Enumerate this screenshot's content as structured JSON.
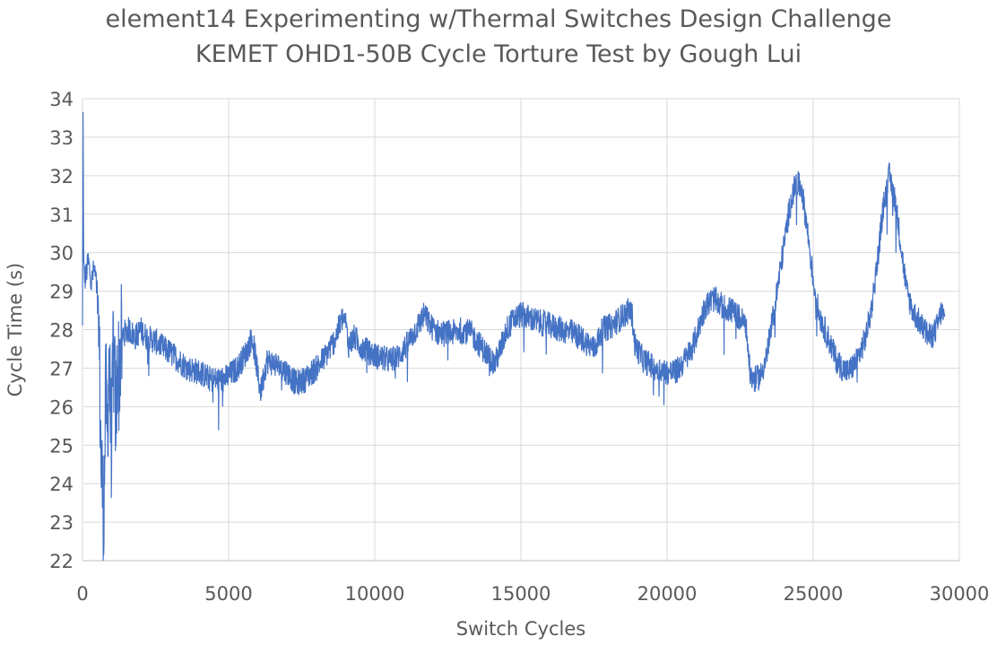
{
  "chart_data": {
    "type": "line",
    "title": [
      "element14 Experimenting w/Thermal Switches Design Challenge",
      "KEMET OHD1-50B Cycle Torture Test by Gough Lui"
    ],
    "xlabel": "Switch Cycles",
    "ylabel": "Cycle Time (s)",
    "xlim": [
      0,
      30000
    ],
    "ylim": [
      22,
      34
    ],
    "xticks": [
      "0",
      "5000",
      "10000",
      "15000",
      "20000",
      "25000",
      "30000"
    ],
    "yticks": [
      "22",
      "23",
      "24",
      "25",
      "26",
      "27",
      "28",
      "29",
      "30",
      "31",
      "32",
      "33",
      "34"
    ],
    "grid": true,
    "legend": "none",
    "series_color": "#4472C4",
    "series": [
      {
        "points": [
          [
            0,
            28.0
          ],
          [
            20,
            34.0
          ],
          [
            40,
            29.6
          ],
          [
            100,
            29.3
          ],
          [
            200,
            29.8
          ],
          [
            300,
            29.2
          ],
          [
            400,
            29.6
          ],
          [
            500,
            29.0
          ],
          [
            560,
            28.4
          ],
          [
            600,
            26.2
          ],
          [
            640,
            24.5
          ],
          [
            680,
            24.0
          ],
          [
            720,
            23.0
          ],
          [
            760,
            24.6
          ],
          [
            800,
            26.4
          ],
          [
            850,
            25.2
          ],
          [
            900,
            27.2
          ],
          [
            950,
            26.0
          ],
          [
            1000,
            24.8
          ],
          [
            1050,
            27.6
          ],
          [
            1100,
            26.5
          ],
          [
            1150,
            25.6
          ],
          [
            1200,
            27.2
          ],
          [
            1250,
            26.8
          ],
          [
            1300,
            27.5
          ],
          [
            1400,
            27.9
          ],
          [
            1600,
            28.0
          ],
          [
            1800,
            27.8
          ],
          [
            2000,
            28.0
          ],
          [
            2200,
            27.8
          ],
          [
            2500,
            27.7
          ],
          [
            2800,
            27.5
          ],
          [
            3000,
            27.4
          ],
          [
            3300,
            27.2
          ],
          [
            3600,
            27.0
          ],
          [
            4000,
            26.9
          ],
          [
            4400,
            26.7
          ],
          [
            4800,
            26.7
          ],
          [
            5000,
            26.8
          ],
          [
            5300,
            27.0
          ],
          [
            5600,
            27.4
          ],
          [
            5800,
            27.8
          ],
          [
            5900,
            27.4
          ],
          [
            6000,
            26.8
          ],
          [
            6100,
            26.4
          ],
          [
            6300,
            27.2
          ],
          [
            6600,
            27.1
          ],
          [
            7000,
            26.9
          ],
          [
            7300,
            26.6
          ],
          [
            7600,
            26.7
          ],
          [
            8000,
            27.0
          ],
          [
            8300,
            27.3
          ],
          [
            8600,
            27.7
          ],
          [
            8900,
            28.3
          ],
          [
            9000,
            28.2
          ],
          [
            9100,
            27.6
          ],
          [
            9300,
            27.8
          ],
          [
            9500,
            27.6
          ],
          [
            9800,
            27.4
          ],
          [
            10100,
            27.3
          ],
          [
            10500,
            27.2
          ],
          [
            10800,
            27.3
          ],
          [
            11100,
            27.6
          ],
          [
            11400,
            28.0
          ],
          [
            11700,
            28.4
          ],
          [
            11900,
            28.1
          ],
          [
            12200,
            27.9
          ],
          [
            12600,
            27.9
          ],
          [
            13000,
            28.0
          ],
          [
            13300,
            27.9
          ],
          [
            13600,
            27.6
          ],
          [
            13900,
            27.3
          ],
          [
            14100,
            27.1
          ],
          [
            14300,
            27.5
          ],
          [
            14500,
            28.0
          ],
          [
            14800,
            28.3
          ],
          [
            15000,
            28.4
          ],
          [
            15300,
            28.3
          ],
          [
            15600,
            28.2
          ],
          [
            16000,
            28.1
          ],
          [
            16400,
            28.0
          ],
          [
            16800,
            27.9
          ],
          [
            17200,
            27.7
          ],
          [
            17500,
            27.5
          ],
          [
            17800,
            28.0
          ],
          [
            18100,
            28.1
          ],
          [
            18400,
            28.3
          ],
          [
            18700,
            28.5
          ],
          [
            18800,
            28.4
          ],
          [
            18900,
            27.6
          ],
          [
            19200,
            27.2
          ],
          [
            19600,
            27.0
          ],
          [
            20000,
            26.9
          ],
          [
            20300,
            26.9
          ],
          [
            20600,
            27.2
          ],
          [
            20900,
            27.6
          ],
          [
            21100,
            28.1
          ],
          [
            21300,
            28.6
          ],
          [
            21600,
            28.8
          ],
          [
            21900,
            28.6
          ],
          [
            22200,
            28.5
          ],
          [
            22500,
            28.3
          ],
          [
            22700,
            28.1
          ],
          [
            22850,
            26.8
          ],
          [
            23000,
            26.7
          ],
          [
            23200,
            26.8
          ],
          [
            23400,
            27.3
          ],
          [
            23600,
            28.2
          ],
          [
            23800,
            29.2
          ],
          [
            24000,
            30.2
          ],
          [
            24200,
            31.2
          ],
          [
            24400,
            31.8
          ],
          [
            24600,
            31.7
          ],
          [
            24800,
            30.6
          ],
          [
            25000,
            29.3
          ],
          [
            25200,
            28.4
          ],
          [
            25500,
            27.8
          ],
          [
            25800,
            27.2
          ],
          [
            26000,
            27.0
          ],
          [
            26200,
            26.9
          ],
          [
            26500,
            27.2
          ],
          [
            26800,
            27.8
          ],
          [
            27000,
            28.6
          ],
          [
            27200,
            29.8
          ],
          [
            27400,
            31.2
          ],
          [
            27600,
            32.0
          ],
          [
            27800,
            31.4
          ],
          [
            28000,
            30.2
          ],
          [
            28200,
            29.0
          ],
          [
            28400,
            28.5
          ],
          [
            28700,
            28.1
          ],
          [
            29000,
            27.8
          ],
          [
            29200,
            28.0
          ],
          [
            29400,
            28.5
          ],
          [
            29500,
            28.2
          ]
        ]
      }
    ]
  }
}
